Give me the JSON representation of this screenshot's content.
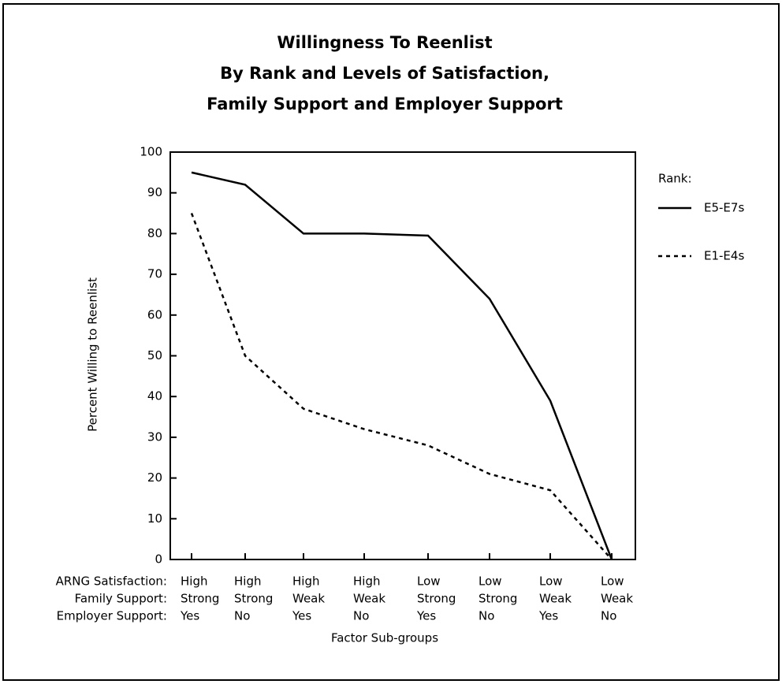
{
  "chart_data": {
    "type": "line",
    "title": [
      "Willingness To Reenlist",
      "By Rank and Levels of Satisfaction,",
      "Family Support and Employer Support"
    ],
    "ylabel": "Percent Willing to Reenlist",
    "xlabel": "Factor Sub-groups",
    "category_row_labels": [
      "ARNG Satisfaction:",
      "Family Support:",
      "Employer Support:"
    ],
    "categories": [
      [
        "High",
        "Strong",
        "Yes"
      ],
      [
        "High",
        "Strong",
        "No"
      ],
      [
        "High",
        "Weak",
        "Yes"
      ],
      [
        "High",
        "Weak",
        "No"
      ],
      [
        "Low",
        "Strong",
        "Yes"
      ],
      [
        "Low",
        "Strong",
        "No"
      ],
      [
        "Low",
        "Weak",
        "Yes"
      ],
      [
        "Low",
        "Weak",
        "No"
      ]
    ],
    "legend_title": "Rank:",
    "series": [
      {
        "name": "E5-E7s",
        "color": "#000000",
        "style": "solid",
        "values": [
          95,
          92,
          80,
          80,
          79.5,
          64,
          39,
          0
        ]
      },
      {
        "name": "E1-E4s",
        "color": "#000000",
        "style": "dotted",
        "values": [
          85,
          50,
          37,
          32,
          28,
          21,
          17,
          0
        ]
      }
    ],
    "ylim": [
      0,
      100
    ],
    "yticks": [
      0,
      10,
      20,
      30,
      40,
      50,
      60,
      70,
      80,
      90,
      100
    ],
    "grid": false,
    "legend": "right"
  }
}
